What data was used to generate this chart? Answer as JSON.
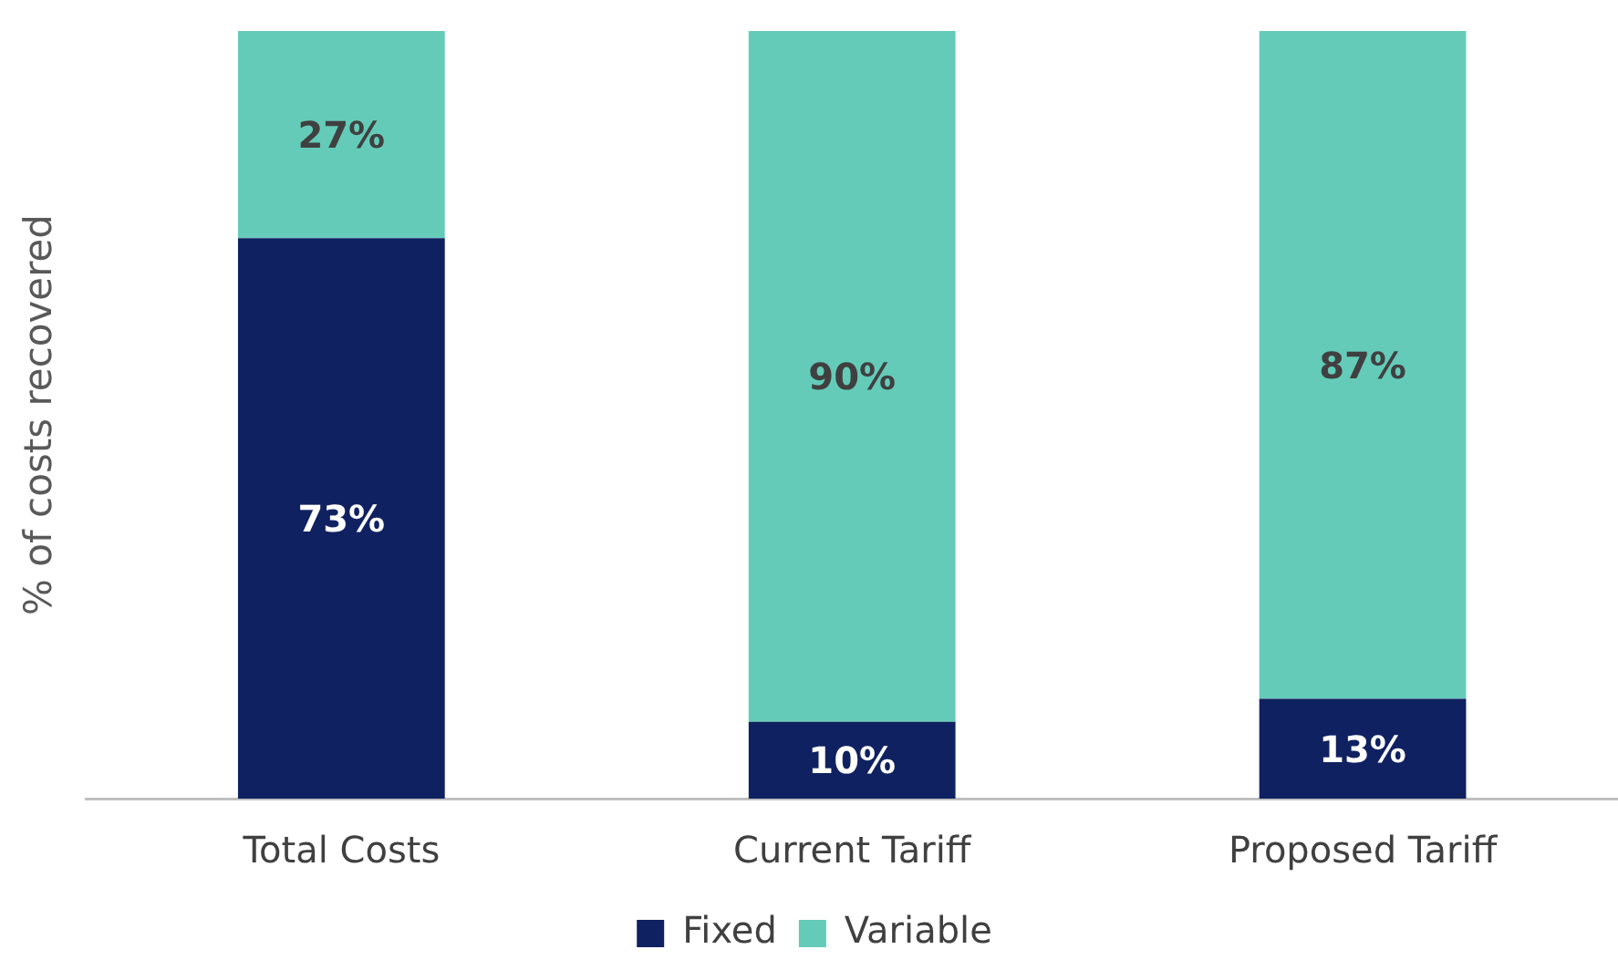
{
  "chart_data": {
    "type": "bar",
    "stacked": true,
    "ylabel": "% of costs recovered",
    "categories": [
      "Total Costs",
      "Current Tariff",
      "Proposed Tariff"
    ],
    "series": [
      {
        "name": "Fixed",
        "color": "#0f2160",
        "values": [
          73,
          10,
          13
        ],
        "value_labels": [
          "73%",
          "10%",
          "13%"
        ]
      },
      {
        "name": "Variable",
        "color": "#64cbb9",
        "values": [
          27,
          90,
          87
        ],
        "value_labels": [
          "27%",
          "90%",
          "87%"
        ]
      }
    ],
    "tick_labels": "x",
    "legend": "bottom",
    "grid": false
  }
}
